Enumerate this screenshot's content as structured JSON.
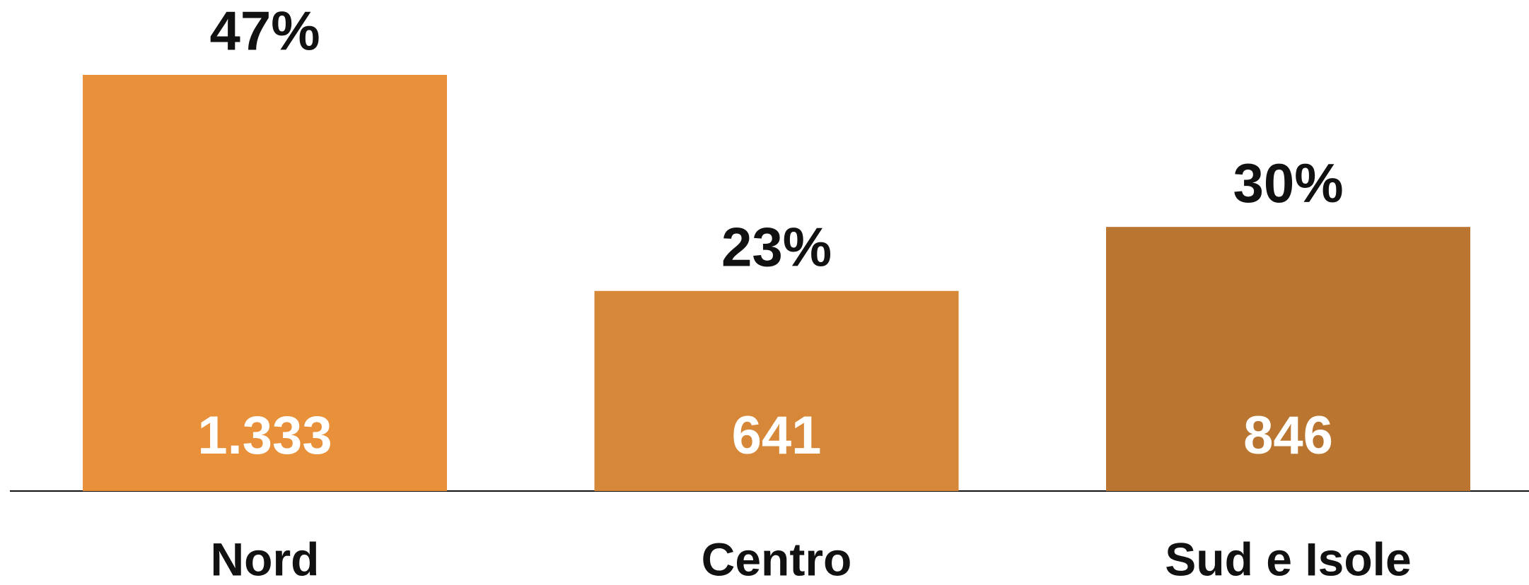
{
  "chart_data": {
    "type": "bar",
    "categories": [
      "Nord",
      "Centro",
      "Sud e Isole"
    ],
    "values": [
      1333,
      641,
      846
    ],
    "value_labels": [
      "1.333",
      "641",
      "846"
    ],
    "shares": [
      47,
      23,
      30
    ],
    "share_labels": [
      "47%",
      "23%",
      "30%"
    ],
    "colors": [
      "#e8913a",
      "#d68838",
      "#ba7631"
    ]
  }
}
